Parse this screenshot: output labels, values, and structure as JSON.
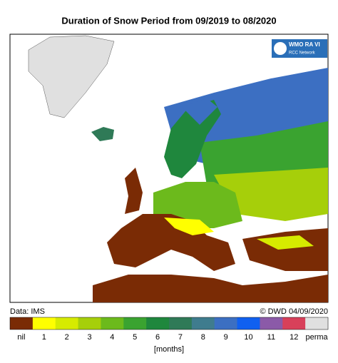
{
  "title": "Duration of Snow Period from 09/2019 to 08/2020",
  "logo": {
    "name": "WMO RA VI",
    "network": "RCC Network"
  },
  "source": "Data: IMS",
  "credit": "© DWD 04/09/2020",
  "legend": {
    "unit": "[months]",
    "items": [
      {
        "label": "nil",
        "color": "#7a2b05"
      },
      {
        "label": "1",
        "color": "#ffff00"
      },
      {
        "label": "2",
        "color": "#d6eb00"
      },
      {
        "label": "3",
        "color": "#a6cf0a"
      },
      {
        "label": "4",
        "color": "#6cba1c"
      },
      {
        "label": "5",
        "color": "#3aa330"
      },
      {
        "label": "6",
        "color": "#1f873d"
      },
      {
        "label": "7",
        "color": "#2f7a57"
      },
      {
        "label": "8",
        "color": "#3f7c8e"
      },
      {
        "label": "9",
        "color": "#3c6fc2"
      },
      {
        "label": "10",
        "color": "#1060f0"
      },
      {
        "label": "11",
        "color": "#8b5aa8"
      },
      {
        "label": "12",
        "color": "#d8405a"
      },
      {
        "label": "perma",
        "color": "#e0e0e0"
      }
    ]
  }
}
